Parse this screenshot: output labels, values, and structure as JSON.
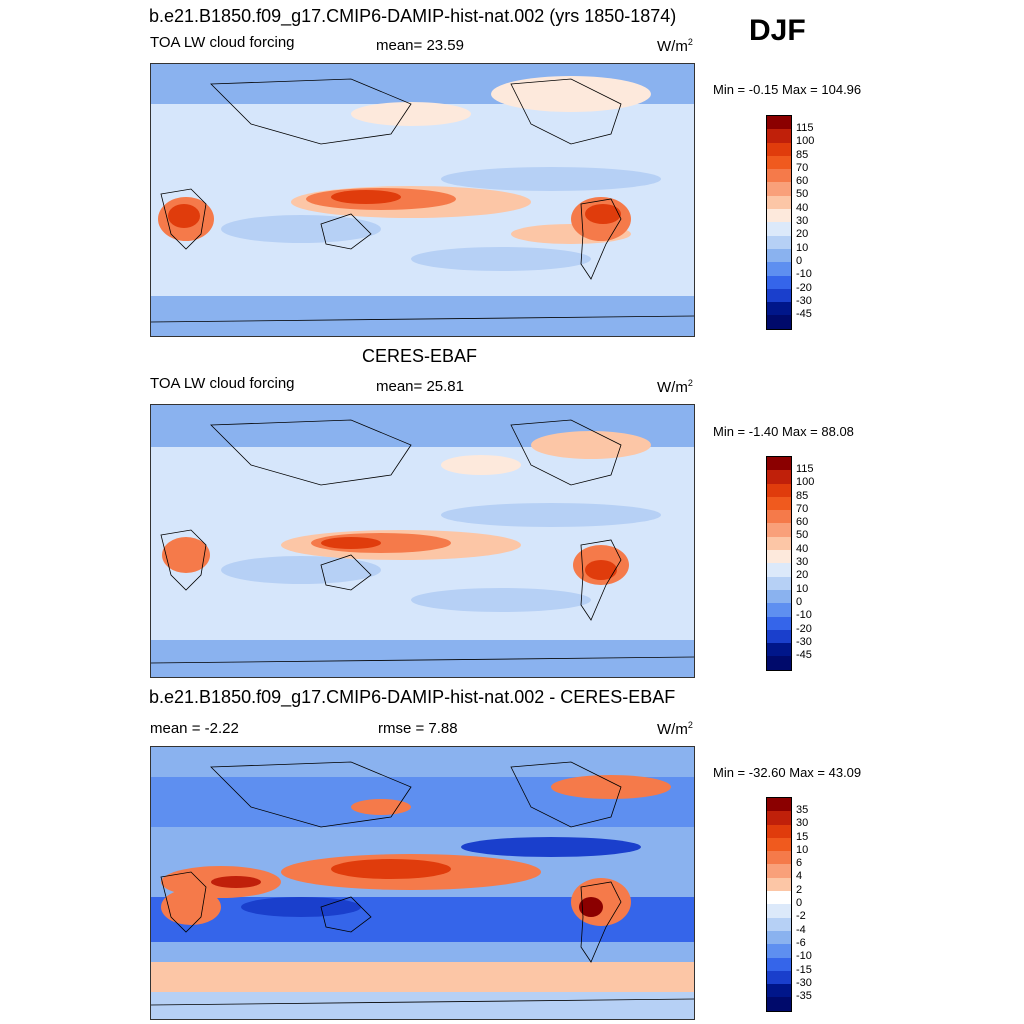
{
  "season": "DJF",
  "panels": [
    {
      "title": "b.e21.B1850.f09_g17.CMIP6-DAMIP-hist-nat.002 (yrs 1850-1874)",
      "left_label": "TOA LW cloud forcing",
      "center_label": "mean=  23.59",
      "unit_base": "W/m",
      "unit_exp": "2",
      "minmax": "Min =  -0.15 Max = 104.96",
      "colorbar_labels": [
        "115",
        "100",
        "85",
        "70",
        "60",
        "50",
        "40",
        "30",
        "20",
        "10",
        "0",
        "-10",
        "-20",
        "-30",
        "-45"
      ]
    },
    {
      "title": "CERES-EBAF",
      "left_label": "TOA LW cloud forcing",
      "center_label": "mean=  25.81",
      "unit_base": "W/m",
      "unit_exp": "2",
      "minmax": "Min =  -1.40 Max =  88.08",
      "colorbar_labels": [
        "115",
        "100",
        "85",
        "70",
        "60",
        "50",
        "40",
        "30",
        "20",
        "10",
        "0",
        "-10",
        "-20",
        "-30",
        "-45"
      ]
    },
    {
      "title": "b.e21.B1850.f09_g17.CMIP6-DAMIP-hist-nat.002 - CERES-EBAF",
      "left_label": "mean =  -2.22",
      "center_label": "rmse =   7.88",
      "unit_base": "W/m",
      "unit_exp": "2",
      "minmax": "Min = -32.60 Max =  43.09",
      "colorbar_labels": [
        "35",
        "30",
        "15",
        "10",
        "6",
        "4",
        "2",
        "0",
        "-2",
        "-4",
        "-6",
        "-10",
        "-15",
        "-30",
        "-35"
      ]
    }
  ],
  "colors": {
    "abs_scale": [
      "#8b0000",
      "#c0200a",
      "#e03c0c",
      "#f05a1e",
      "#f57a4a",
      "#f9a07a",
      "#fcc6a6",
      "#fde9dc",
      "#dce9fa",
      "#b6d0f5",
      "#8ab2ef",
      "#5e8ff0",
      "#3565ea",
      "#1a3fcc",
      "#00168a",
      "#000a6b"
    ],
    "diff_scale": [
      "#8b0000",
      "#c0200a",
      "#e03c0c",
      "#f05a1e",
      "#f57a4a",
      "#f9a07a",
      "#fcc6a6",
      "#ffffff",
      "#dce9fa",
      "#b6d0f5",
      "#8ab2ef",
      "#5e8ff0",
      "#3565ea",
      "#1a3fcc",
      "#00168a",
      "#000a6b"
    ],
    "ocean_base": "#d6e6fb",
    "land_outline": "#000000"
  }
}
